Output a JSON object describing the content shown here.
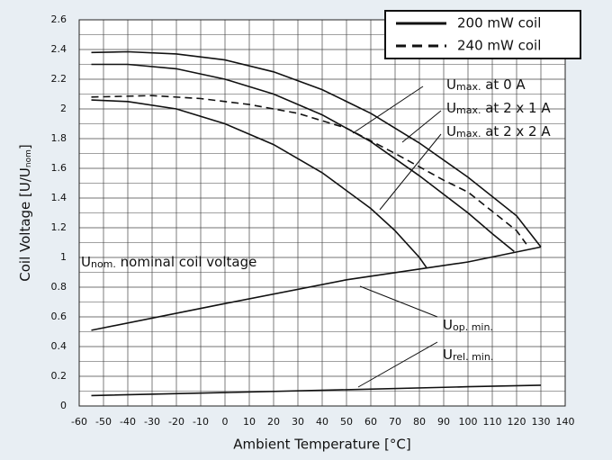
{
  "chart_data": {
    "type": "line",
    "xlabel": "Ambient Temperature [°C]",
    "ylabel": {
      "text": "Coil Voltage [U/U",
      "sub": "nom",
      "rest": "]"
    },
    "xlim": [
      -60,
      140
    ],
    "ylim": [
      0,
      2.6
    ],
    "xticks": [
      -60,
      -50,
      -40,
      -30,
      -20,
      -10,
      0,
      10,
      20,
      30,
      40,
      50,
      60,
      70,
      80,
      90,
      100,
      110,
      120,
      130,
      140
    ],
    "yticks": [
      0,
      0.2,
      0.4,
      0.6,
      0.8,
      1,
      1.2,
      1.4,
      1.6,
      1.8,
      2,
      2.2,
      2.4,
      2.6
    ],
    "yminorticks": [
      0.1,
      0.3,
      0.5,
      0.7,
      0.9,
      1.1,
      1.3,
      1.5,
      1.7,
      1.9,
      2.1,
      2.3,
      2.5
    ],
    "grid": true,
    "legend_position": "upper right",
    "legend": [
      {
        "label": "200 mW coil",
        "dash": false
      },
      {
        "label": "240 mW coil",
        "dash": true
      }
    ],
    "series": [
      {
        "color": "#111111",
        "dash": false,
        "x": [
          -55,
          -40,
          -20,
          0,
          20,
          40,
          60,
          80,
          100,
          120,
          130
        ],
        "values": [
          2.38,
          2.385,
          2.37,
          2.33,
          2.25,
          2.13,
          1.97,
          1.77,
          1.54,
          1.28,
          1.07
        ]
      },
      {
        "color": "#111111",
        "dash": false,
        "x": [
          -55,
          -40,
          -20,
          0,
          20,
          40,
          60,
          80,
          100,
          110,
          119
        ],
        "values": [
          2.3,
          2.3,
          2.27,
          2.2,
          2.1,
          1.96,
          1.78,
          1.55,
          1.3,
          1.16,
          1.04
        ]
      },
      {
        "color": "#111111",
        "dash": false,
        "x": [
          -55,
          -40,
          -20,
          0,
          20,
          40,
          60,
          70,
          80,
          83
        ],
        "values": [
          2.06,
          2.05,
          2.0,
          1.9,
          1.76,
          1.57,
          1.33,
          1.18,
          1.0,
          0.93
        ]
      },
      {
        "color": "#111111",
        "dash": true,
        "x": [
          -55,
          -30,
          -10,
          10,
          30,
          50,
          70,
          90,
          100,
          110,
          120,
          124
        ],
        "values": [
          2.08,
          2.09,
          2.07,
          2.03,
          1.97,
          1.87,
          1.7,
          1.52,
          1.44,
          1.31,
          1.18,
          1.09
        ]
      },
      {
        "color": "#111111",
        "dash": false,
        "x": [
          -55,
          0,
          50,
          100,
          130
        ],
        "values": [
          0.51,
          0.69,
          0.85,
          0.97,
          1.07
        ]
      },
      {
        "color": "#111111",
        "dash": false,
        "x": [
          -55,
          0,
          50,
          100,
          130
        ],
        "values": [
          0.07,
          0.09,
          0.11,
          0.13,
          0.14
        ]
      }
    ],
    "annotations": [
      {
        "text": "U",
        "sub": "max.",
        "rest": " at 0 A"
      },
      {
        "text": "U",
        "sub": "max.",
        "rest": " at 2 x 1 A"
      },
      {
        "text": "U",
        "sub": "max.",
        "rest": " at 2 x 2 A"
      },
      {
        "text": "U",
        "sub": "nom.",
        "rest": " nominal coil voltage"
      },
      {
        "text": "U",
        "sub": "op. min.",
        "rest": ""
      },
      {
        "text": "U",
        "sub": "rel. min.",
        "rest": ""
      }
    ]
  }
}
